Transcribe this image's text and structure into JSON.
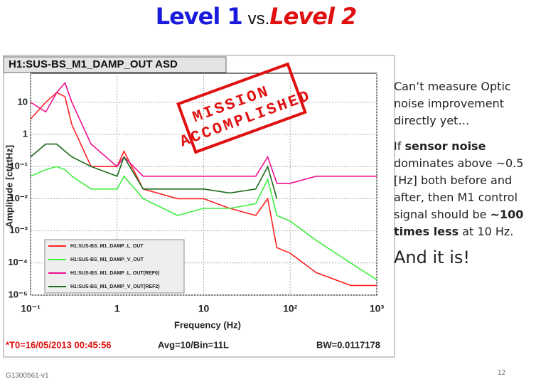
{
  "slide_title": {
    "part1": "Level 1",
    "part2": "vs.",
    "part3": "Level 2"
  },
  "notes": {
    "p1": "Can’t measure Optic noise improvement directly yet…",
    "p2": [
      {
        "text": "If "
      },
      {
        "text": "sensor noise",
        "bold": true
      },
      {
        "text": " dominates above ~0.5 [Hz] both before and after, then M1 control signal should be "
      },
      {
        "text": "~100 times less",
        "bold": true
      },
      {
        "text": " at 10 Hz."
      }
    ],
    "p3": "And it is!"
  },
  "footer": {
    "doc_id": "G1300561-v1",
    "page": "12"
  },
  "chart_data": {
    "type": "line",
    "title": "H1:SUS-BS_M1_DAMP_OUT ASD",
    "xlabel": "Frequency (Hz)",
    "ylabel": "Amplitude [ct/rtHz]",
    "xscale": "log",
    "yscale": "log",
    "grid": true,
    "legend": "lower left",
    "stamp": [
      "MISSION",
      "ACCOMPLISHED"
    ],
    "info": [
      "*T0=16/05/2013 00:45:56",
      "Avg=10/Bin=11L",
      "BW=0.0117178"
    ],
    "x": [
      0.1,
      0.15,
      0.2,
      0.25,
      0.3,
      0.5,
      1,
      1.2,
      2,
      5,
      10,
      20,
      40,
      55,
      70,
      100,
      200,
      500,
      1000
    ],
    "series": [
      {
        "name": "H1:SUS-BS_M1_DAMP_L_OUT",
        "color": "#ff2020",
        "values": [
          3,
          10,
          20,
          15,
          2,
          0.1,
          0.1,
          0.3,
          0.02,
          0.01,
          0.01,
          0.005,
          0.003,
          0.01,
          0.0003,
          0.0002,
          5e-05,
          2e-05,
          2e-05
        ]
      },
      {
        "name": "H1:SUS-BS_M1_DAMP_V_OUT",
        "color": "#40ee40",
        "values": [
          0.05,
          0.08,
          0.1,
          0.08,
          0.05,
          0.02,
          0.02,
          0.05,
          0.01,
          0.003,
          0.005,
          0.005,
          0.007,
          0.04,
          0.003,
          0.002,
          0.0005,
          0.0001,
          3e-05
        ]
      },
      {
        "name": "H1:SUS-BS_M1_DAMP_L_OUT(REF0)",
        "color": "#ee1090",
        "values": [
          10,
          5,
          20,
          40,
          10,
          0.5,
          0.1,
          0.2,
          0.05,
          0.05,
          0.05,
          0.05,
          0.05,
          0.2,
          0.03,
          0.03,
          0.05,
          0.05,
          0.05
        ]
      },
      {
        "name": "H1:SUS-BS_M1_DAMP_V_OUT(REF2)",
        "color": "#1a6a1a",
        "values": [
          0.2,
          0.5,
          0.5,
          0.3,
          0.2,
          0.1,
          0.05,
          0.2,
          0.02,
          0.02,
          0.02,
          0.015,
          0.02,
          0.1,
          0.01,
          null,
          null,
          null,
          null
        ]
      }
    ],
    "xlim": [
      0.1,
      1000
    ],
    "xticks": [
      {
        "value": 0.1,
        "label": "10⁻¹"
      },
      1,
      10,
      {
        "value": 100,
        "label": "10²"
      },
      {
        "value": 1000,
        "label": "10³"
      }
    ],
    "ylim": [
      1e-05,
      80
    ],
    "yticks": [
      {
        "value": 1e-05,
        "label": "10⁻⁵"
      },
      {
        "value": 0.0001,
        "label": "10⁻⁴"
      },
      {
        "value": 0.001,
        "label": "10⁻³"
      },
      {
        "value": 0.01,
        "label": "10⁻²"
      },
      {
        "value": 0.1,
        "label": "10⁻¹"
      },
      1,
      10
    ]
  }
}
